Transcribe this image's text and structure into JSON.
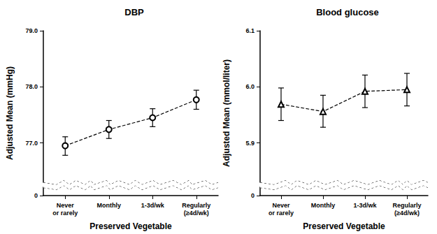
{
  "chart_data": [
    {
      "type": "line",
      "title": "DBP",
      "x_label": "Preserved Vegetable",
      "y_label": "Adjusted Mean (mmHg)",
      "categories": [
        "Never\nor rarely",
        "Monthly",
        "1-3d/wk",
        "Regularly\n(≥4d/wk)"
      ],
      "values": [
        76.95,
        77.24,
        77.45,
        77.77
      ],
      "error_low": [
        76.78,
        77.08,
        77.29,
        77.6
      ],
      "error_high": [
        77.11,
        77.4,
        77.61,
        77.94
      ],
      "color": "#000000",
      "marker": "circle",
      "line_style": "dashed",
      "ylim": [
        0,
        79
      ],
      "ybreak": [
        0.15,
        76.3
      ],
      "yticks": [
        0,
        {
          "value": 77,
          "label": "77.0"
        },
        {
          "value": 78,
          "label": "78.0"
        },
        {
          "value": 79,
          "label": "79.0"
        }
      ]
    },
    {
      "type": "line",
      "title": "Blood glucose",
      "x_label": "Preserved Vegetable",
      "y_label": "Adjusted Mean (mmol/liter)",
      "categories": [
        "Never\nor rarely",
        "Monthly",
        "1-3d/wk",
        "Regularly\n(≥4d/wk)"
      ],
      "values": [
        5.969,
        5.956,
        5.992,
        5.995
      ],
      "error_low": [
        5.94,
        5.928,
        5.963,
        5.966
      ],
      "error_high": [
        5.998,
        5.985,
        6.021,
        6.024
      ],
      "color": "#000000",
      "marker": "triangle",
      "line_style": "dashed",
      "ylim": [
        0,
        6.1
      ],
      "ybreak": [
        0.015,
        5.83
      ],
      "yticks": [
        0,
        5.9,
        {
          "value": 6,
          "label": "6.0"
        },
        6.1
      ]
    }
  ]
}
